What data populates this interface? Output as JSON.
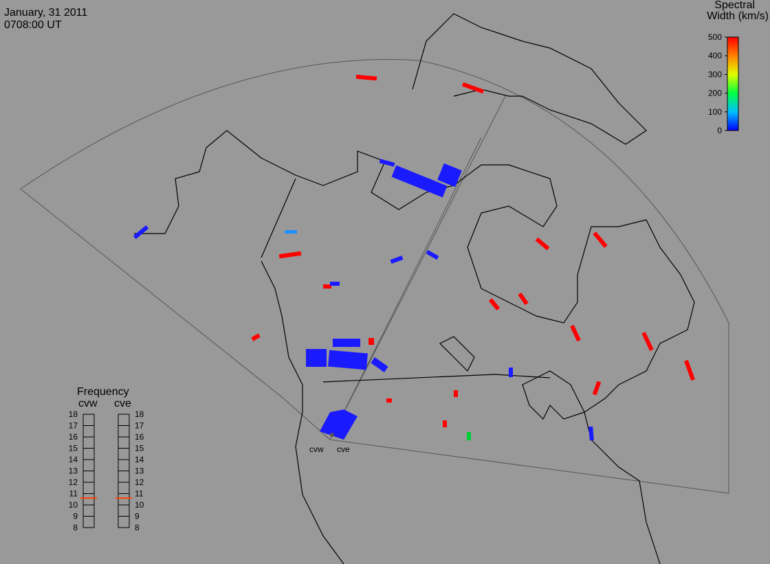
{
  "header": {
    "date": "January, 31 2011",
    "time": "0708:00 UT"
  },
  "colorbar": {
    "title_line1": "Spectral",
    "title_line2": "Width (km/s)",
    "ticks": [
      0,
      100,
      200,
      300,
      400,
      500
    ]
  },
  "frequency": {
    "title": "Frequency",
    "radars": [
      "cvw",
      "cve"
    ],
    "ticks": [
      8,
      9,
      10,
      11,
      12,
      13,
      14,
      15,
      16,
      17,
      18
    ],
    "values": [
      10.6,
      10.6
    ]
  },
  "radar_labels": [
    "cvw",
    "cve"
  ]
}
